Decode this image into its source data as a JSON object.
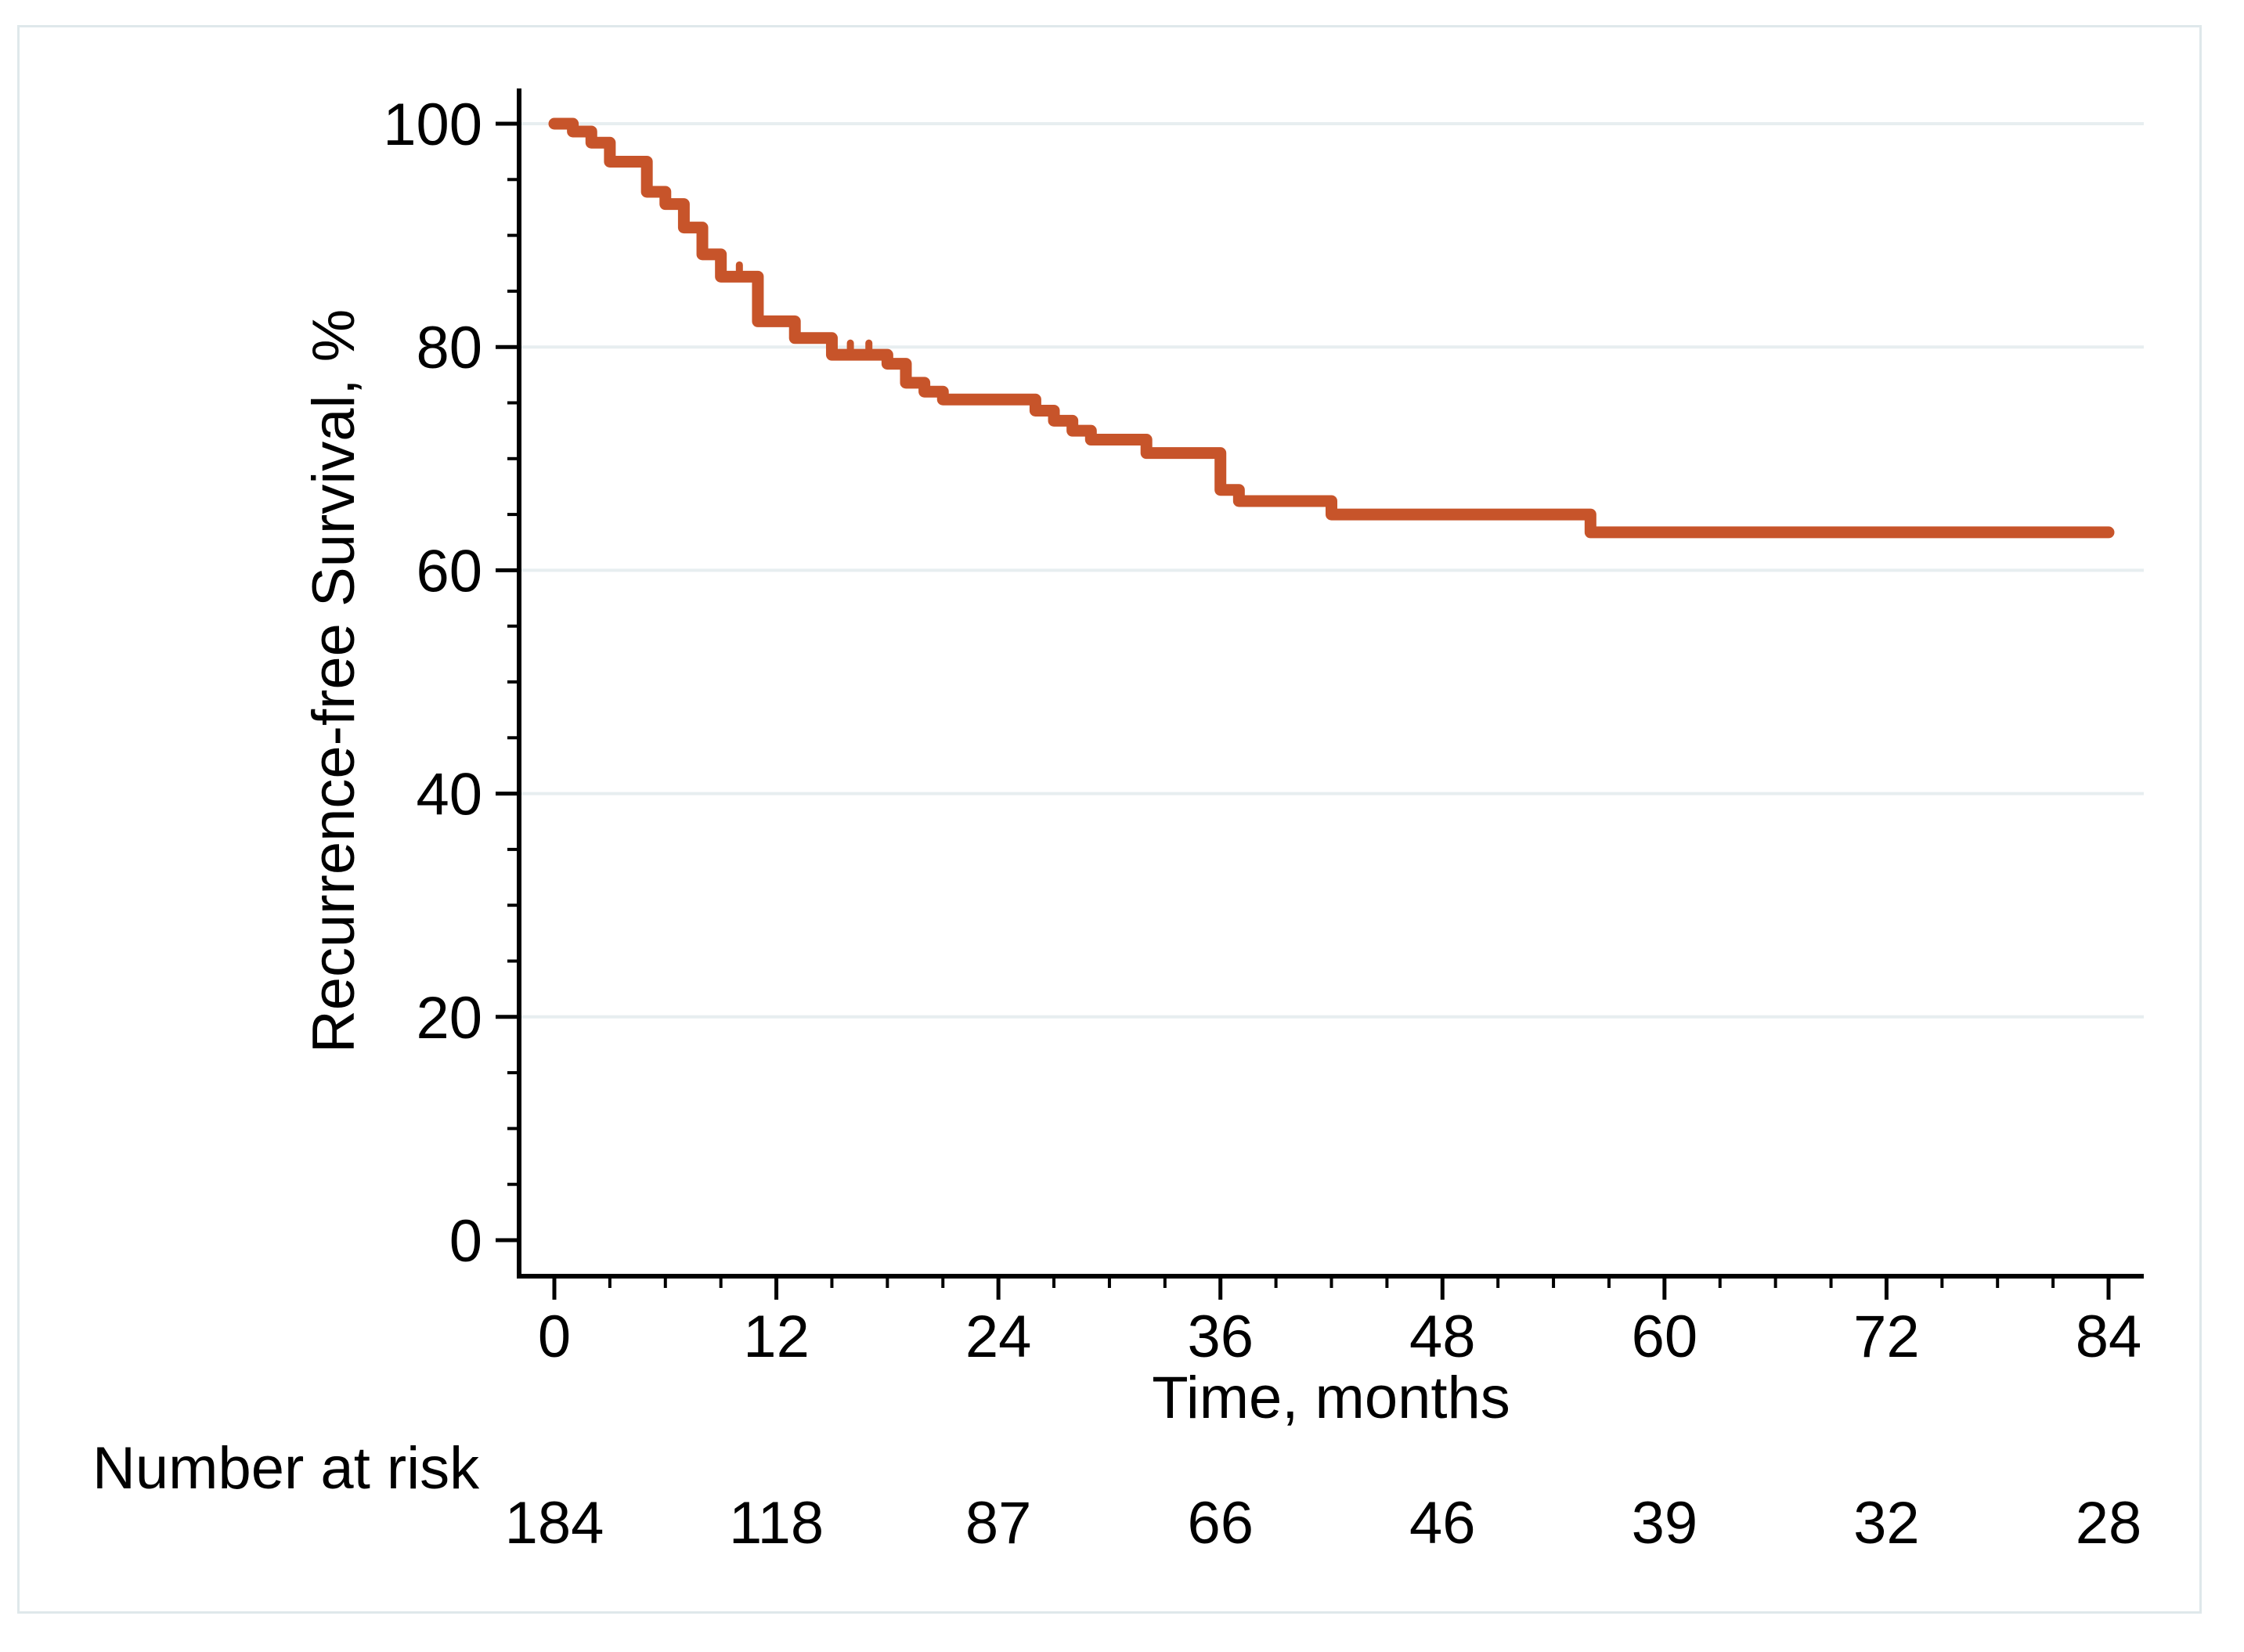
{
  "figure": {
    "y_axis_title": "Recurrence-free Survival, %",
    "x_axis_title": "Time, months",
    "risk_table_label": "Number at risk"
  },
  "colors": {
    "curve": "#C7542A",
    "grid": "#E7EEF0",
    "axis": "#000000",
    "frame": "#DFE8EB",
    "background": "#FFFFFF"
  },
  "chart_data": {
    "type": "line",
    "subtype": "kaplan-meier-step",
    "title": "",
    "xlabel": "Time, months",
    "ylabel": "Recurrence-free Survival, %",
    "xlim": [
      0,
      84
    ],
    "ylim": [
      0,
      100
    ],
    "x_major_ticks": [
      0,
      12,
      24,
      36,
      48,
      60,
      72,
      84
    ],
    "x_minor_tick_interval": 3,
    "y_major_ticks": [
      0,
      20,
      40,
      60,
      80,
      100
    ],
    "y_minor_tick_interval": 5,
    "gridlines_y": [
      20,
      40,
      60,
      80,
      100
    ],
    "legend": "none",
    "series": [
      {
        "name": "Recurrence-free survival",
        "color": "#C7542A",
        "steps": [
          [
            0,
            100
          ],
          [
            1,
            99.3
          ],
          [
            2,
            98.3
          ],
          [
            3,
            96.6
          ],
          [
            5,
            93.9
          ],
          [
            6,
            92.8
          ],
          [
            7,
            90.7
          ],
          [
            8,
            88.3
          ],
          [
            9,
            86.3
          ],
          [
            11,
            82.3
          ],
          [
            13,
            80.8
          ],
          [
            15,
            79.3
          ],
          [
            18,
            78.5
          ],
          [
            19,
            76.8
          ],
          [
            20,
            76.0
          ],
          [
            21,
            75.3
          ],
          [
            26,
            74.3
          ],
          [
            27,
            73.4
          ],
          [
            28,
            72.5
          ],
          [
            29,
            71.7
          ],
          [
            32,
            70.5
          ],
          [
            36,
            67.2
          ],
          [
            37,
            66.2
          ],
          [
            42,
            65.0
          ],
          [
            56,
            63.4
          ],
          [
            84,
            63.4
          ]
        ],
        "censor_ticks": [
          [
            10,
            86.3
          ],
          [
            16,
            79.3
          ],
          [
            17,
            79.3
          ]
        ]
      }
    ],
    "risk_table": {
      "label": "Number at risk",
      "times": [
        0,
        12,
        24,
        36,
        48,
        60,
        72,
        84
      ],
      "counts": [
        184,
        118,
        87,
        66,
        46,
        39,
        32,
        28
      ]
    }
  }
}
